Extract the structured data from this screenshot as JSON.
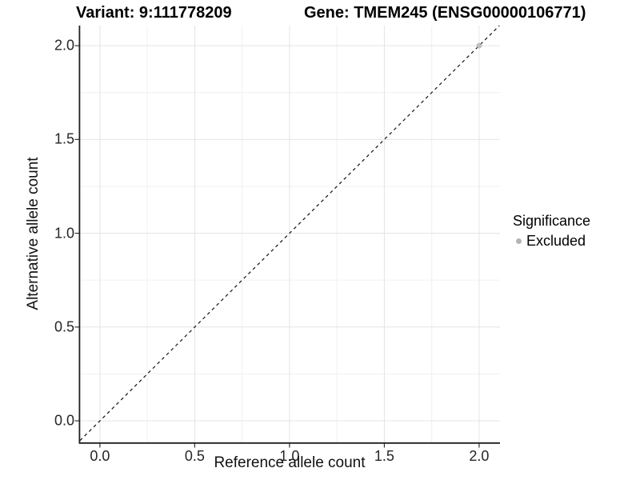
{
  "chart_data": {
    "type": "scatter",
    "titles": {
      "variant": "Variant: 9:111778209",
      "gene": "Gene: TMEM245 (ENSG00000106771)"
    },
    "xlabel": "Reference allele count",
    "ylabel": "Alternative allele count",
    "xlim": [
      -0.105,
      2.11
    ],
    "ylim": [
      -0.115,
      2.107
    ],
    "x_ticks": [
      0,
      0.5,
      1,
      1.5,
      2
    ],
    "x_tick_labels": [
      "0.0",
      "0.5",
      "1.0",
      "1.5",
      "2.0"
    ],
    "y_ticks": [
      0,
      0.5,
      1,
      1.5,
      2
    ],
    "y_tick_labels": [
      "0.0",
      "0.5",
      "1.0",
      "1.5",
      "2.0"
    ],
    "x_minor_ticks": [
      0.25,
      0.75,
      1.25,
      1.75
    ],
    "y_minor_ticks": [
      0.25,
      0.75,
      1.25,
      1.75
    ],
    "grid": "major+minor",
    "points": [
      {
        "x": 2.0,
        "y": 2.0,
        "significance": "Excluded"
      }
    ],
    "identity_line": {
      "slope": 1,
      "intercept": 0,
      "linetype": "dashed",
      "color": "#111111"
    },
    "legend": {
      "title": "Significance",
      "position": "right",
      "entries": [
        {
          "label": "Excluded",
          "color": "#b4b4b4",
          "marker": "circle"
        }
      ]
    },
    "colors": {
      "grid_major": "#e4e4e4",
      "grid_minor": "#f0f0f0",
      "axis_line": "#1f1f1f",
      "tick_mark": "#333333",
      "point_excluded": "#b4b4b4"
    }
  }
}
